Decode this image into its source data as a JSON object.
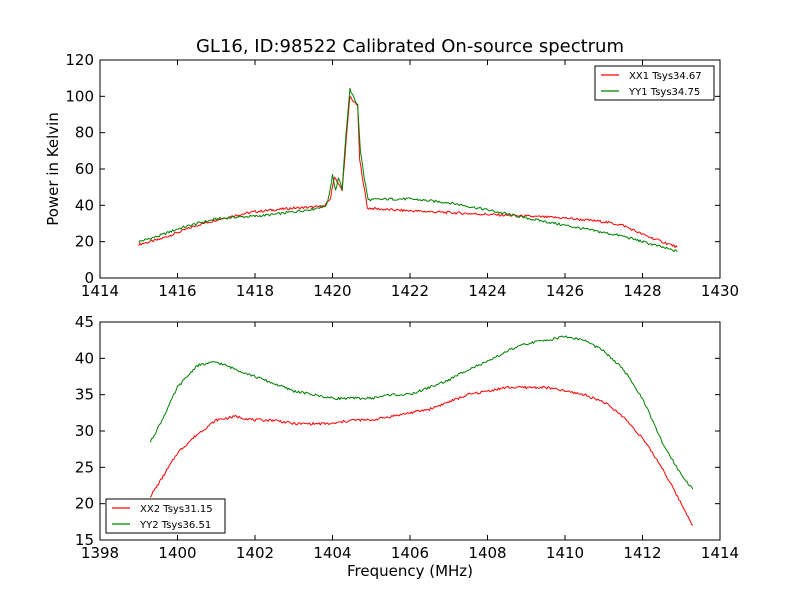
{
  "chart_data": [
    {
      "type": "line",
      "title": "GL16, ID:98522 Calibrated On-source spectrum",
      "xlabel": "",
      "ylabel": "Power in Kelvin",
      "xlim": [
        1414,
        1430
      ],
      "ylim": [
        0,
        120
      ],
      "xticks": [
        1414,
        1416,
        1418,
        1420,
        1422,
        1424,
        1426,
        1428,
        1430
      ],
      "yticks": [
        0,
        20,
        40,
        60,
        80,
        100,
        120
      ],
      "legend": "top-right",
      "grid": false,
      "series": [
        {
          "name": "XX1 Tsys34.67",
          "color": "#ff0000",
          "points": [
            [
              1415.0,
              18.5
            ],
            [
              1415.5,
              21
            ],
            [
              1416.0,
              25
            ],
            [
              1416.5,
              29
            ],
            [
              1417.0,
              32
            ],
            [
              1417.5,
              34.5
            ],
            [
              1418.0,
              36.5
            ],
            [
              1418.5,
              37.5
            ],
            [
              1419.0,
              38.5
            ],
            [
              1419.5,
              39
            ],
            [
              1419.8,
              39.5
            ],
            [
              1419.95,
              44
            ],
            [
              1420.05,
              56
            ],
            [
              1420.15,
              52
            ],
            [
              1420.25,
              48
            ],
            [
              1420.35,
              75
            ],
            [
              1420.45,
              100
            ],
            [
              1420.55,
              97
            ],
            [
              1420.65,
              95
            ],
            [
              1420.7,
              65
            ],
            [
              1420.8,
              52
            ],
            [
              1420.9,
              38.5
            ],
            [
              1421.5,
              37.5
            ],
            [
              1422.0,
              37
            ],
            [
              1423.0,
              36
            ],
            [
              1424.0,
              35
            ],
            [
              1425.0,
              34
            ],
            [
              1426.0,
              33
            ],
            [
              1427.0,
              31
            ],
            [
              1427.5,
              29
            ],
            [
              1428.0,
              24
            ],
            [
              1428.5,
              20
            ],
            [
              1428.9,
              17
            ]
          ]
        },
        {
          "name": "YY1 Tsys34.75",
          "color": "#008000",
          "points": [
            [
              1415.0,
              20
            ],
            [
              1415.5,
              23
            ],
            [
              1416.0,
              27
            ],
            [
              1416.5,
              30
            ],
            [
              1417.0,
              32.5
            ],
            [
              1417.5,
              33.5
            ],
            [
              1418.0,
              34
            ],
            [
              1418.5,
              35
            ],
            [
              1419.0,
              36.5
            ],
            [
              1419.5,
              38
            ],
            [
              1419.85,
              40
            ],
            [
              1419.95,
              50
            ],
            [
              1420.0,
              57
            ],
            [
              1420.08,
              48
            ],
            [
              1420.15,
              55
            ],
            [
              1420.25,
              49
            ],
            [
              1420.35,
              80
            ],
            [
              1420.45,
              104
            ],
            [
              1420.55,
              99
            ],
            [
              1420.65,
              95
            ],
            [
              1420.72,
              70
            ],
            [
              1420.82,
              55
            ],
            [
              1420.92,
              43
            ],
            [
              1421.5,
              43.5
            ],
            [
              1422.0,
              43.5
            ],
            [
              1423.0,
              41.5
            ],
            [
              1424.0,
              37.5
            ],
            [
              1425.0,
              33
            ],
            [
              1426.0,
              29
            ],
            [
              1427.0,
              25
            ],
            [
              1427.5,
              23
            ],
            [
              1428.0,
              20
            ],
            [
              1428.5,
              17
            ],
            [
              1428.9,
              14.5
            ]
          ]
        }
      ]
    },
    {
      "type": "line",
      "title": "",
      "xlabel": "Frequency (MHz)",
      "ylabel": "",
      "xlim": [
        1398,
        1414
      ],
      "ylim": [
        15,
        45
      ],
      "xticks": [
        1398,
        1400,
        1402,
        1404,
        1406,
        1408,
        1410,
        1412,
        1414
      ],
      "yticks": [
        15,
        20,
        25,
        30,
        35,
        40,
        45
      ],
      "legend": "bottom-left",
      "grid": false,
      "series": [
        {
          "name": "XX2 Tsys31.15",
          "color": "#ff0000",
          "points": [
            [
              1399.3,
              21
            ],
            [
              1399.6,
              23.5
            ],
            [
              1400.0,
              27
            ],
            [
              1400.5,
              29.5
            ],
            [
              1401.0,
              31.5
            ],
            [
              1401.5,
              32
            ],
            [
              1402.0,
              31.5
            ],
            [
              1402.5,
              31.5
            ],
            [
              1403.0,
              31
            ],
            [
              1403.5,
              31
            ],
            [
              1404.0,
              31
            ],
            [
              1404.5,
              31.5
            ],
            [
              1405.0,
              31.5
            ],
            [
              1405.5,
              32
            ],
            [
              1406.0,
              32.5
            ],
            [
              1406.5,
              33
            ],
            [
              1407.0,
              34
            ],
            [
              1407.5,
              35
            ],
            [
              1408.0,
              35.5
            ],
            [
              1408.5,
              36
            ],
            [
              1409.0,
              36
            ],
            [
              1409.5,
              36
            ],
            [
              1410.0,
              35.5
            ],
            [
              1410.5,
              35
            ],
            [
              1411.0,
              34
            ],
            [
              1411.5,
              32
            ],
            [
              1412.0,
              29
            ],
            [
              1412.5,
              25
            ],
            [
              1413.0,
              20
            ],
            [
              1413.3,
              17
            ]
          ]
        },
        {
          "name": "YY2 Tsys36.51",
          "color": "#008000",
          "points": [
            [
              1399.3,
              28.5
            ],
            [
              1399.6,
              31.5
            ],
            [
              1400.0,
              36
            ],
            [
              1400.5,
              39
            ],
            [
              1401.0,
              39.5
            ],
            [
              1401.5,
              38.5
            ],
            [
              1402.0,
              37.5
            ],
            [
              1402.5,
              36.5
            ],
            [
              1403.0,
              35.5
            ],
            [
              1403.5,
              35
            ],
            [
              1404.0,
              34.5
            ],
            [
              1404.5,
              34.5
            ],
            [
              1405.0,
              34.5
            ],
            [
              1405.5,
              35
            ],
            [
              1406.0,
              35
            ],
            [
              1406.5,
              36
            ],
            [
              1407.0,
              37
            ],
            [
              1407.5,
              38.5
            ],
            [
              1408.0,
              39.5
            ],
            [
              1408.5,
              41
            ],
            [
              1409.0,
              42
            ],
            [
              1409.5,
              42.5
            ],
            [
              1410.0,
              43
            ],
            [
              1410.5,
              42.5
            ],
            [
              1411.0,
              41
            ],
            [
              1411.5,
              38.5
            ],
            [
              1412.0,
              34.5
            ],
            [
              1412.5,
              28.5
            ],
            [
              1413.0,
              24
            ],
            [
              1413.3,
              22
            ]
          ]
        }
      ]
    }
  ]
}
